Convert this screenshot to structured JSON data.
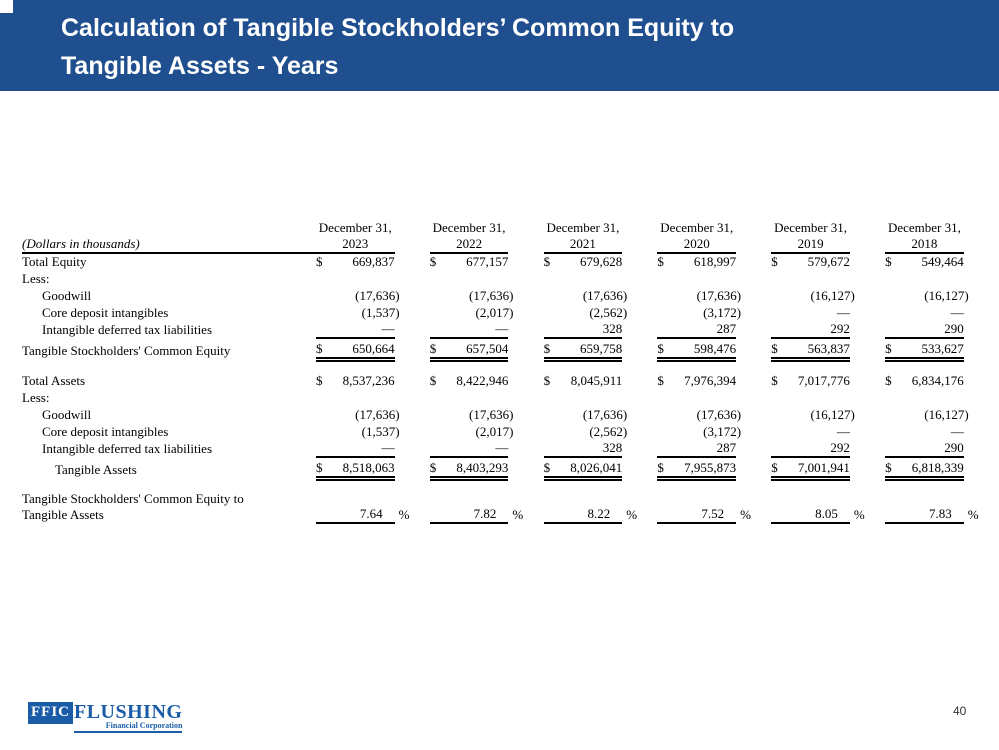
{
  "header": {
    "title_line1": "Calculation of Tangible Stockholders’ Common Equity to",
    "title_line2": "Tangible Assets - Years",
    "background_color": "#1F4F8F"
  },
  "table": {
    "units_label": "(Dollars in thousands)",
    "date_header": "December 31,",
    "years": [
      "2023",
      "2022",
      "2021",
      "2020",
      "2019",
      "2018"
    ],
    "rows": [
      {
        "type": "data",
        "label": "Total Equity",
        "indent": 0,
        "dollar": "$",
        "values": [
          "669,837",
          "677,157",
          "679,628",
          "618,997",
          "579,672",
          "549,464"
        ]
      },
      {
        "type": "data",
        "label": "Less:",
        "indent": 0
      },
      {
        "type": "data",
        "label": "Goodwill",
        "indent": 1,
        "values": [
          "(17,636)",
          "(17,636)",
          "(17,636)",
          "(17,636)",
          "(16,127)",
          "(16,127)"
        ]
      },
      {
        "type": "data",
        "label": "Core deposit intangibles",
        "indent": 1,
        "values": [
          "(1,537)",
          "(2,017)",
          "(2,562)",
          "(3,172)",
          "—",
          "—"
        ]
      },
      {
        "type": "data",
        "label": "Intangible deferred tax liabilities",
        "indent": 1,
        "values": [
          "—",
          "—",
          "328",
          "287",
          "292",
          "290"
        ]
      },
      {
        "type": "total",
        "label": "Tangible Stockholders' Common Equity",
        "indent": 0,
        "dollar": "$",
        "values": [
          "650,664",
          "657,504",
          "659,758",
          "598,476",
          "563,837",
          "533,627"
        ]
      },
      {
        "type": "spacer"
      },
      {
        "type": "data",
        "label": "Total Assets",
        "indent": 0,
        "dollar": "$",
        "values": [
          "8,537,236",
          "8,422,946",
          "8,045,911",
          "7,976,394",
          "7,017,776",
          "6,834,176"
        ]
      },
      {
        "type": "data",
        "label": "Less:",
        "indent": 0
      },
      {
        "type": "data",
        "label": "Goodwill",
        "indent": 1,
        "values": [
          "(17,636)",
          "(17,636)",
          "(17,636)",
          "(17,636)",
          "(16,127)",
          "(16,127)"
        ]
      },
      {
        "type": "data",
        "label": "Core deposit intangibles",
        "indent": 1,
        "values": [
          "(1,537)",
          "(2,017)",
          "(2,562)",
          "(3,172)",
          "—",
          "—"
        ]
      },
      {
        "type": "data",
        "label": "Intangible deferred tax liabilities",
        "indent": 1,
        "values": [
          "—",
          "—",
          "328",
          "287",
          "292",
          "290"
        ]
      },
      {
        "type": "total",
        "label": "Tangible Assets",
        "indent": 2,
        "dollar": "$",
        "values": [
          "8,518,063",
          "8,403,293",
          "8,026,041",
          "7,955,873",
          "7,001,941",
          "6,818,339"
        ]
      },
      {
        "type": "spacer"
      },
      {
        "type": "ratio",
        "label_line1": "Tangible Stockholders' Common Equity to",
        "label_line2": "Tangible Assets",
        "suffix": "%",
        "values": [
          "7.64",
          "7.82",
          "8.22",
          "7.52",
          "8.05",
          "7.83"
        ]
      }
    ]
  },
  "logo": {
    "acronym": "FFIC",
    "name": "FLUSHING",
    "subtitle": "Financial Corporation",
    "color": "#1A5CA8"
  },
  "footer": {
    "page_number": "40"
  }
}
